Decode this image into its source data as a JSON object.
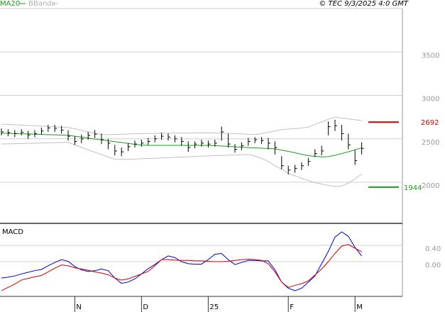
{
  "source": "© TEC 9/3/2025 4:0 GMT",
  "chart_data": [
    {
      "type": "ohlc",
      "bar_color": "#000000",
      "high": [
        2620,
        2610,
        2600,
        2610,
        2590,
        2600,
        2630,
        2660,
        2660,
        2650,
        2600,
        2530,
        2550,
        2580,
        2600,
        2560,
        2500,
        2430,
        2400,
        2450,
        2480,
        2490,
        2510,
        2540,
        2570,
        2560,
        2540,
        2520,
        2470,
        2470,
        2490,
        2480,
        2490,
        2640,
        2560,
        2440,
        2460,
        2510,
        2520,
        2520,
        2510,
        2470,
        2300,
        2190,
        2200,
        2230,
        2280,
        2380,
        2420,
        2700,
        2720,
        2660,
        2560,
        2370,
        2460
      ],
      "low": [
        2540,
        2530,
        2520,
        2540,
        2500,
        2520,
        2550,
        2580,
        2580,
        2560,
        2480,
        2430,
        2450,
        2490,
        2510,
        2440,
        2380,
        2310,
        2300,
        2360,
        2400,
        2410,
        2430,
        2460,
        2490,
        2480,
        2460,
        2420,
        2350,
        2390,
        2410,
        2400,
        2410,
        2480,
        2400,
        2340,
        2370,
        2420,
        2450,
        2440,
        2380,
        2320,
        2150,
        2090,
        2110,
        2140,
        2190,
        2290,
        2310,
        2540,
        2590,
        2480,
        2380,
        2200,
        2320
      ],
      "close": [
        2580,
        2570,
        2560,
        2575,
        2545,
        2560,
        2590,
        2625,
        2620,
        2600,
        2530,
        2470,
        2500,
        2540,
        2555,
        2490,
        2450,
        2360,
        2350,
        2410,
        2440,
        2450,
        2470,
        2500,
        2530,
        2520,
        2500,
        2470,
        2400,
        2440,
        2450,
        2440,
        2450,
        2580,
        2440,
        2380,
        2420,
        2470,
        2490,
        2480,
        2450,
        2400,
        2190,
        2140,
        2160,
        2190,
        2240,
        2330,
        2360,
        2640,
        2650,
        2560,
        2430,
        2250,
        2390
      ],
      "series": [
        {
          "name": "MA20",
          "color": "#1a9e1a",
          "values": [
            2565,
            2563,
            2560,
            2558,
            2556,
            2553,
            2550,
            2548,
            2546,
            2543,
            2541,
            2530,
            2520,
            2508,
            2497,
            2488,
            2478,
            2468,
            2457,
            2447,
            2437,
            2428,
            2425,
            2425,
            2425,
            2425,
            2425,
            2425,
            2425,
            2425,
            2425,
            2425,
            2422,
            2418,
            2413,
            2408,
            2403,
            2399,
            2396,
            2392,
            2388,
            2385,
            2370,
            2355,
            2340,
            2322,
            2306,
            2298,
            2292,
            2295,
            2310,
            2330,
            2350,
            2375,
            2395
          ]
        },
        {
          "name": "BBands",
          "color": "#c0c0c0",
          "upper": [
            2670,
            2666,
            2662,
            2658,
            2654,
            2650,
            2646,
            2642,
            2638,
            2634,
            2630,
            2615,
            2597,
            2580,
            2563,
            2549,
            2547,
            2550,
            2553,
            2555,
            2558,
            2560,
            2561,
            2562,
            2563,
            2564,
            2565,
            2566,
            2567,
            2568,
            2569,
            2570,
            2568,
            2565,
            2562,
            2559,
            2556,
            2552,
            2550,
            2560,
            2575,
            2590,
            2605,
            2612,
            2618,
            2625,
            2635,
            2665,
            2695,
            2725,
            2748,
            2740,
            2730,
            2720,
            2712
          ],
          "lower": [
            2440,
            2442,
            2444,
            2446,
            2448,
            2450,
            2452,
            2454,
            2456,
            2458,
            2460,
            2430,
            2400,
            2375,
            2345,
            2320,
            2290,
            2265,
            2262,
            2265,
            2268,
            2271,
            2274,
            2277,
            2280,
            2283,
            2287,
            2290,
            2293,
            2296,
            2300,
            2303,
            2306,
            2308,
            2311,
            2314,
            2317,
            2320,
            2300,
            2275,
            2240,
            2190,
            2150,
            2100,
            2075,
            2045,
            2020,
            1995,
            1980,
            1965,
            1952,
            1955,
            1990,
            2040,
            2095
          ]
        }
      ],
      "levels": [
        {
          "value": 2692,
          "color": "#cc0000"
        },
        {
          "value": 1944,
          "color": "#1a9e1a"
        }
      ],
      "ylim": [
        1535,
        4000
      ],
      "yticks": [
        2000,
        2500,
        3000,
        3500
      ],
      "grid": true
    },
    {
      "type": "line",
      "title": "MACD",
      "categories": [
        null,
        null,
        null,
        null,
        null,
        null,
        null,
        null,
        null,
        null,
        null,
        "N",
        null,
        null,
        null,
        null,
        null,
        null,
        null,
        null,
        null,
        "D",
        null,
        null,
        null,
        null,
        null,
        null,
        null,
        null,
        null,
        "25",
        null,
        null,
        null,
        null,
        null,
        null,
        null,
        null,
        null,
        null,
        null,
        "F",
        null,
        null,
        null,
        null,
        null,
        null,
        null,
        null,
        null,
        "M",
        null
      ],
      "series": [
        {
          "color": "#0000cc",
          "values": [
            -0.4,
            -0.38,
            -0.35,
            -0.3,
            -0.26,
            -0.22,
            -0.19,
            -0.1,
            -0.02,
            0.05,
            0.01,
            -0.12,
            -0.2,
            -0.24,
            -0.22,
            -0.18,
            -0.22,
            -0.4,
            -0.53,
            -0.5,
            -0.42,
            -0.3,
            -0.17,
            -0.07,
            0.05,
            0.14,
            0.1,
            0.0,
            -0.05,
            -0.06,
            -0.06,
            0.05,
            0.18,
            0.2,
            0.05,
            -0.07,
            -0.02,
            0.03,
            0.03,
            0.02,
            0.02,
            -0.2,
            -0.5,
            -0.65,
            -0.71,
            -0.65,
            -0.5,
            -0.35,
            -0.05,
            0.25,
            0.6,
            0.73,
            0.62,
            0.35,
            0.14
          ]
        },
        {
          "color": "#cc0000",
          "values": [
            -0.71,
            -0.63,
            -0.55,
            -0.45,
            -0.41,
            -0.37,
            -0.34,
            -0.25,
            -0.16,
            -0.08,
            -0.1,
            -0.15,
            -0.18,
            -0.21,
            -0.25,
            -0.28,
            -0.32,
            -0.4,
            -0.45,
            -0.42,
            -0.36,
            -0.3,
            -0.24,
            -0.1,
            0.05,
            0.05,
            0.04,
            0.03,
            0.03,
            0.02,
            0.02,
            0.01,
            0.0,
            0.0,
            0.01,
            0.03,
            0.05,
            0.06,
            0.05,
            0.03,
            -0.05,
            -0.25,
            -0.5,
            -0.63,
            -0.58,
            -0.54,
            -0.47,
            -0.33,
            -0.18,
            0.0,
            0.2,
            0.38,
            0.42,
            0.33,
            0.24
          ]
        }
      ],
      "ylim": [
        -0.85,
        0.92
      ],
      "yticks": [
        {
          "value": 0.4,
          "label": "0.40"
        },
        {
          "value": 0,
          "label": "0.00"
        }
      ],
      "grid": true
    }
  ]
}
